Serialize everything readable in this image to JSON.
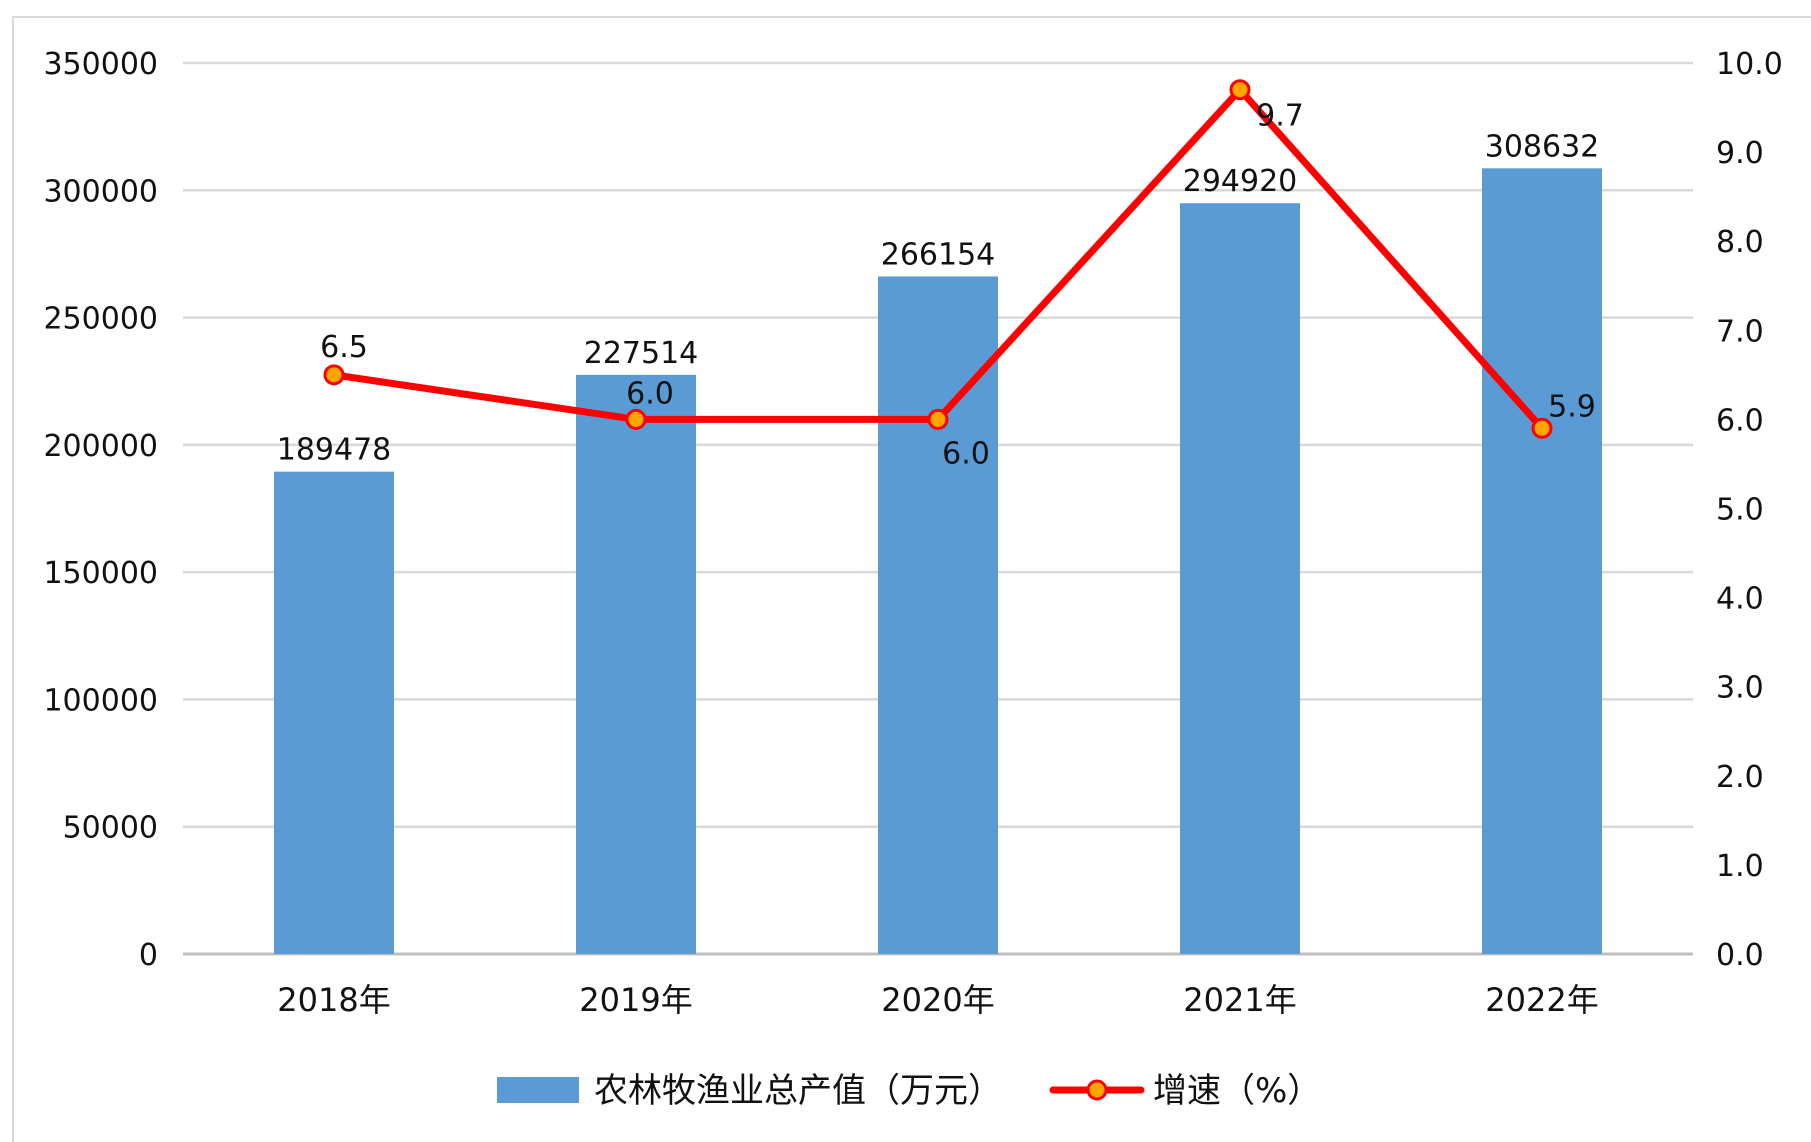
{
  "chart_data": {
    "type": "bar",
    "categories": [
      "2018年",
      "2019年",
      "2020年",
      "2021年",
      "2022年"
    ],
    "series": [
      {
        "name": "农林牧渔业总产值（万元）",
        "type": "bar",
        "axis": "left",
        "color": "#5b9bd5",
        "values": [
          189478,
          227514,
          266154,
          294920,
          308632
        ],
        "labels": [
          "189478",
          "227514",
          "266154",
          "294920",
          "308632"
        ]
      },
      {
        "name": "增速（%）",
        "type": "line",
        "axis": "right",
        "color": "#ff0000",
        "marker_color": "#ffa500",
        "values": [
          6.5,
          6.0,
          6.0,
          9.7,
          5.9
        ],
        "labels": [
          "6.5",
          "6.0",
          "6.0",
          "9.7",
          "5.9"
        ]
      }
    ],
    "ylim_left": [
      0,
      350000
    ],
    "yticks_left": [
      "0",
      "50000",
      "100000",
      "150000",
      "200000",
      "250000",
      "300000",
      "350000"
    ],
    "ylim_right": [
      0,
      10
    ],
    "yticks_right": [
      "0.0",
      "1.0",
      "2.0",
      "3.0",
      "4.0",
      "5.0",
      "6.0",
      "7.0",
      "8.0",
      "9.0",
      "10.0"
    ],
    "grid": true,
    "legend_position": "bottom"
  }
}
